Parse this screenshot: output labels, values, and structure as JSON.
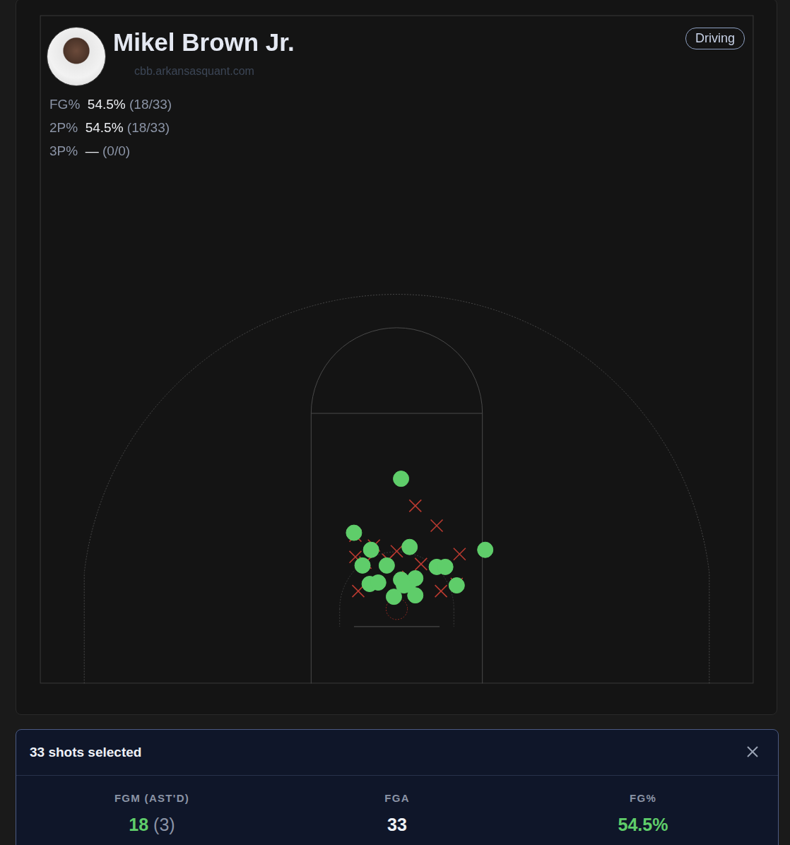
{
  "header": {
    "player": "Mikel Brown Jr.",
    "source": "cbb.arkansasquant.com",
    "filter": "Driving",
    "stats": [
      {
        "label": "FG%",
        "value": "54.5%",
        "detail": "(18/33)"
      },
      {
        "label": "2P%",
        "value": "54.5%",
        "detail": "(18/33)"
      },
      {
        "label": "3P%",
        "value": "—",
        "detail": "(0/0)"
      }
    ]
  },
  "chart_data": {
    "type": "scatter",
    "xlim": [
      -25,
      25
    ],
    "ylim": [
      0,
      47
    ],
    "grid": false,
    "tick_labels": false,
    "series": [
      {
        "color": "#5fcd6a",
        "marker": "circle",
        "x": [
          0.3,
          -3.0,
          -1.8,
          0.9,
          6.2,
          -2.4,
          -0.7,
          2.8,
          3.4,
          -1.9,
          -1.3,
          0.3,
          1.3,
          0.8,
          4.2,
          -0.2,
          1.3,
          0.5
        ],
        "y": [
          14.4,
          10.6,
          9.4,
          9.6,
          9.4,
          8.3,
          8.3,
          8.2,
          8.2,
          7.0,
          7.1,
          7.3,
          7.4,
          7.0,
          6.9,
          6.1,
          6.2,
          6.9
        ]
      },
      {
        "color": "#b93a30",
        "marker": "cross",
        "x": [
          1.3,
          2.8,
          -2.9,
          -1.6,
          -2.9,
          0.0,
          1.7,
          4.4,
          3.2,
          -2.2,
          -2.7,
          4.2,
          3.1,
          0.8,
          -0.6
        ],
        "y": [
          12.5,
          11.1,
          10.4,
          9.7,
          8.9,
          9.3,
          8.4,
          9.1,
          8.3,
          8.5,
          6.5,
          7.0,
          6.5,
          7.5,
          8.7
        ]
      }
    ]
  },
  "summary": {
    "title": "33 shots selected",
    "columns": [
      {
        "label": "FGM (AST'D)",
        "value": "18",
        "detail": "(3)"
      },
      {
        "label": "FGA",
        "value": "33"
      },
      {
        "label": "FG%",
        "value": "54.5%"
      }
    ]
  }
}
